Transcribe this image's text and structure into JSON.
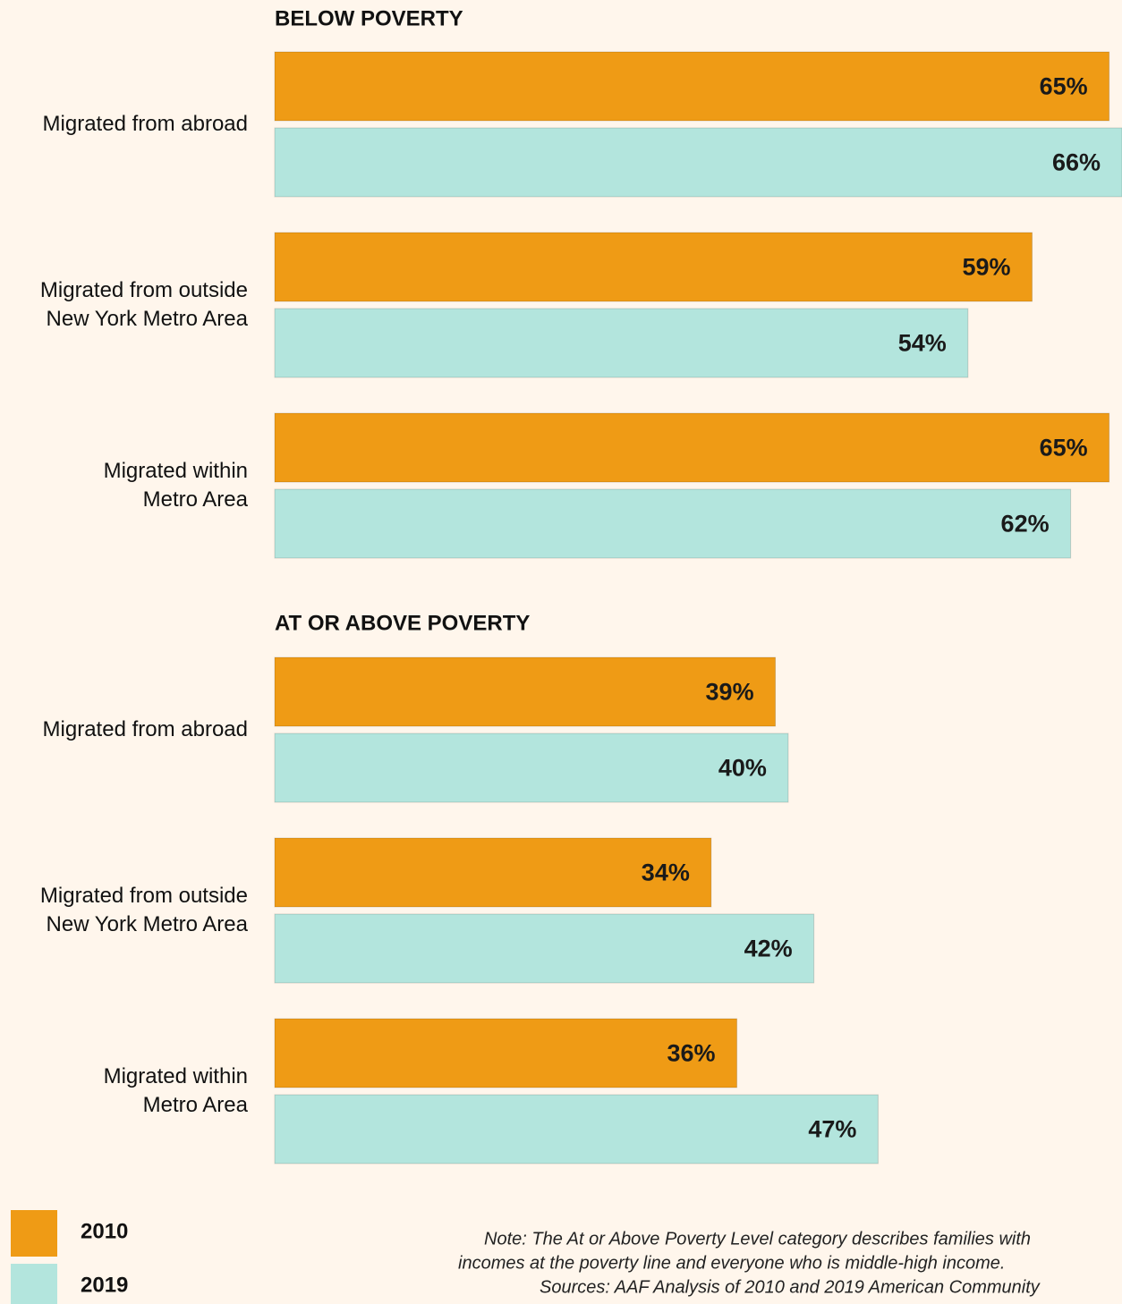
{
  "chart_data": [
    {
      "type": "bar",
      "orientation": "horizontal",
      "title": "BELOW POVERTY",
      "categories": [
        "Migrated from abroad",
        "Migrated from outside\nNew York Metro Area",
        "Migrated within\nMetro Area"
      ],
      "xlim": [
        0,
        66
      ],
      "series": [
        {
          "name": "2010",
          "color": "#ef9b15",
          "values": [
            65,
            59,
            65
          ],
          "value_labels": [
            "65%",
            "59%",
            "65%"
          ]
        },
        {
          "name": "2019",
          "color": "#b3e5dd",
          "values": [
            66,
            54,
            62
          ],
          "value_labels": [
            "66%",
            "54%",
            "62%"
          ]
        }
      ]
    },
    {
      "type": "bar",
      "orientation": "horizontal",
      "title": "AT OR ABOVE POVERTY",
      "categories": [
        "Migrated from abroad",
        "Migrated from outside\nNew York Metro Area",
        "Migrated within\nMetro Area"
      ],
      "xlim": [
        0,
        66
      ],
      "series": [
        {
          "color": "#ef9b15",
          "values": [
            39,
            34,
            36
          ],
          "value_labels": [
            "39%",
            "34%",
            "36%"
          ]
        },
        {
          "color": "#b3e5dd",
          "values": [
            40,
            42,
            47
          ],
          "value_labels": [
            "40%",
            "42%",
            "47%"
          ]
        }
      ]
    }
  ],
  "note": [
    "Note: The At or Above Poverty Level category describes families with",
    "incomes at the poverty line and everyone who is middle-high income.",
    "Sources: AAF Analysis of 2010 and 2019 American Community"
  ]
}
